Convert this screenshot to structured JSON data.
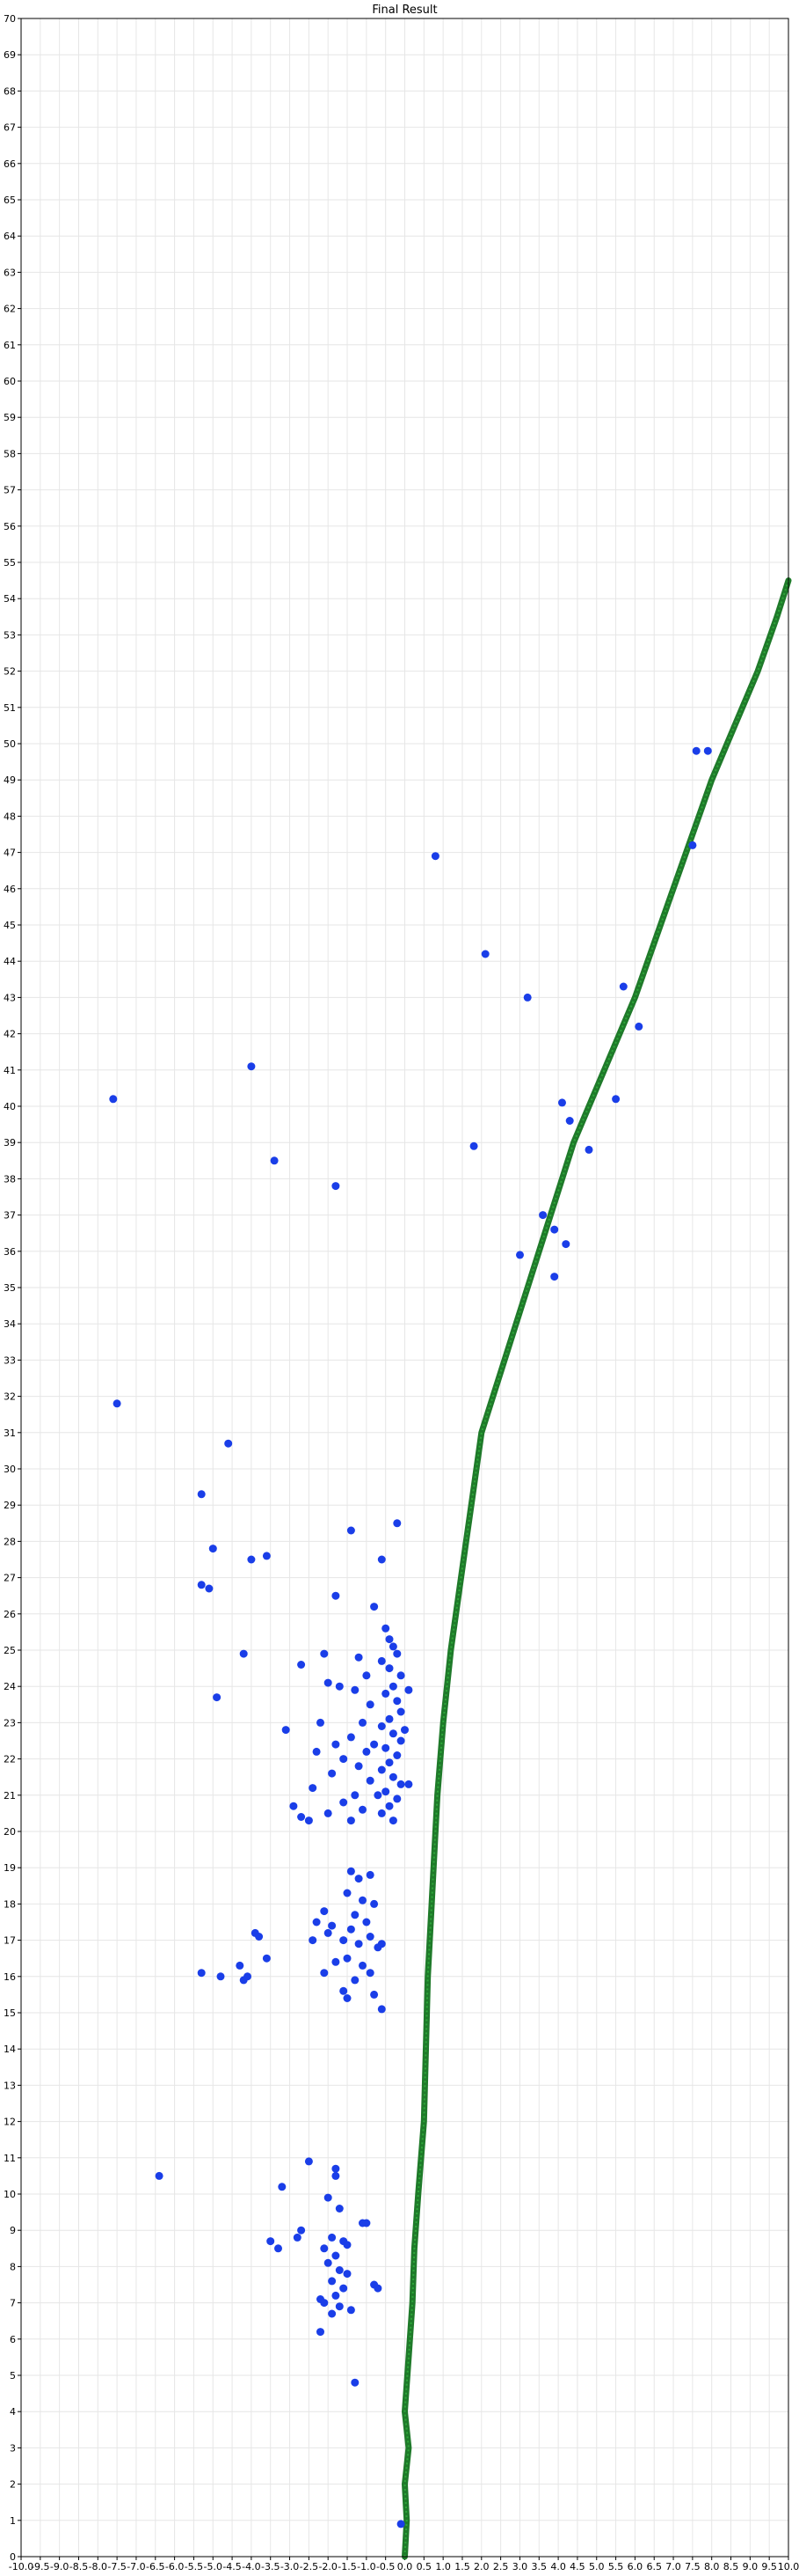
{
  "chart_data": {
    "type": "scatter",
    "title": "Final Result",
    "xlabel": "",
    "ylabel": "",
    "xlim": [
      -10.0,
      10.0
    ],
    "ylim": [
      0,
      70
    ],
    "grid": true,
    "x_ticks": [
      "-10.0",
      "-9.5",
      "-9.0",
      "-8.5",
      "-8.0",
      "-7.5",
      "-7.0",
      "-6.5",
      "-6.0",
      "-5.5",
      "-5.0",
      "-4.5",
      "-4.0",
      "-3.5",
      "-3.0",
      "-2.5",
      "-2.0",
      "-1.5",
      "-1.0",
      "-0.5",
      "0.0",
      "0.5",
      "1.0",
      "1.5",
      "2.0",
      "2.5",
      "3.0",
      "3.5",
      "4.0",
      "4.5",
      "5.0",
      "5.5",
      "6.0",
      "6.5",
      "7.0",
      "7.5",
      "8.0",
      "8.5",
      "9.0",
      "9.5",
      "10.0"
    ],
    "y_ticks": [
      "0",
      "1",
      "2",
      "3",
      "4",
      "5",
      "6",
      "7",
      "8",
      "9",
      "10",
      "11",
      "12",
      "13",
      "14",
      "15",
      "16",
      "17",
      "18",
      "19",
      "20",
      "21",
      "22",
      "23",
      "24",
      "25",
      "26",
      "27",
      "28",
      "29",
      "30",
      "31",
      "32",
      "33",
      "34",
      "35",
      "36",
      "37",
      "38",
      "39",
      "40",
      "41",
      "42",
      "43",
      "44",
      "45",
      "46",
      "47",
      "48",
      "49",
      "50",
      "51",
      "52",
      "53",
      "54",
      "55",
      "56",
      "57",
      "58",
      "59",
      "60",
      "61",
      "62",
      "63",
      "64",
      "65",
      "66",
      "67",
      "68",
      "69",
      "70"
    ],
    "series": [
      {
        "kind": "line",
        "color": "#1f7a2a",
        "x": [
          0.0,
          0.05,
          0.0,
          0.1,
          0.0,
          0.1,
          0.2,
          0.25,
          0.35,
          0.5,
          0.55,
          0.6,
          0.7,
          0.8,
          0.85,
          1.0,
          1.2,
          1.4,
          1.6,
          1.8,
          2.0,
          2.3,
          2.6,
          2.9,
          3.2,
          3.5,
          3.8,
          4.1,
          4.4,
          4.8,
          5.2,
          5.6,
          6.0,
          6.5,
          7.0,
          7.5,
          8.0,
          8.6,
          9.2,
          9.7,
          10.0
        ],
        "y": [
          0.0,
          1.0,
          2.0,
          3.0,
          4.0,
          5.5,
          7.0,
          8.5,
          10.0,
          12.0,
          14.0,
          16.0,
          18.0,
          20.0,
          21.0,
          23.0,
          25.0,
          26.5,
          28.0,
          29.5,
          31.0,
          32.0,
          33.0,
          34.0,
          35.0,
          36.0,
          37.0,
          38.0,
          39.0,
          40.0,
          41.0,
          42.0,
          43.0,
          44.5,
          46.0,
          47.5,
          49.0,
          50.5,
          52.0,
          53.5,
          54.5
        ]
      },
      {
        "kind": "scatter",
        "color": "#1a3ee8",
        "points": [
          [
            -7.6,
            40.2
          ],
          [
            -4.0,
            41.1
          ],
          [
            -3.4,
            38.5
          ],
          [
            -1.8,
            37.8
          ],
          [
            -7.5,
            31.8
          ],
          [
            -4.6,
            30.7
          ],
          [
            -5.3,
            29.3
          ],
          [
            -5.0,
            27.8
          ],
          [
            -4.0,
            27.5
          ],
          [
            -3.6,
            27.6
          ],
          [
            -1.4,
            28.3
          ],
          [
            -0.2,
            28.5
          ],
          [
            -0.6,
            27.5
          ],
          [
            -5.3,
            26.8
          ],
          [
            -5.1,
            26.7
          ],
          [
            -1.8,
            26.5
          ],
          [
            -0.8,
            26.2
          ],
          [
            -4.2,
            24.9
          ],
          [
            -2.7,
            24.6
          ],
          [
            -4.9,
            23.7
          ],
          [
            -3.1,
            22.8
          ],
          [
            -0.5,
            25.6
          ],
          [
            -0.4,
            25.3
          ],
          [
            -0.3,
            25.1
          ],
          [
            -0.2,
            24.9
          ],
          [
            -0.6,
            24.7
          ],
          [
            -0.4,
            24.5
          ],
          [
            -0.1,
            24.3
          ],
          [
            -0.3,
            24.0
          ],
          [
            -0.5,
            23.8
          ],
          [
            -0.2,
            23.6
          ],
          [
            -0.1,
            23.3
          ],
          [
            -0.4,
            23.1
          ],
          [
            -0.6,
            22.9
          ],
          [
            -0.3,
            22.7
          ],
          [
            -0.1,
            22.5
          ],
          [
            -0.5,
            22.3
          ],
          [
            -0.2,
            22.1
          ],
          [
            -0.4,
            21.9
          ],
          [
            -0.6,
            21.7
          ],
          [
            -0.3,
            21.5
          ],
          [
            -0.1,
            21.3
          ],
          [
            -0.5,
            21.1
          ],
          [
            -0.2,
            20.9
          ],
          [
            -0.4,
            20.7
          ],
          [
            -0.6,
            20.5
          ],
          [
            -0.3,
            20.3
          ],
          [
            0.1,
            23.9
          ],
          [
            0.0,
            22.8
          ],
          [
            0.1,
            21.3
          ],
          [
            -1.2,
            24.8
          ],
          [
            -1.0,
            24.3
          ],
          [
            -1.3,
            23.9
          ],
          [
            -0.9,
            23.5
          ],
          [
            -1.1,
            23.0
          ],
          [
            -1.4,
            22.6
          ],
          [
            -1.0,
            22.2
          ],
          [
            -1.2,
            21.8
          ],
          [
            -0.9,
            21.4
          ],
          [
            -1.3,
            21.0
          ],
          [
            -1.1,
            20.6
          ],
          [
            -1.4,
            20.3
          ],
          [
            -0.8,
            22.4
          ],
          [
            -0.7,
            21.0
          ],
          [
            -2.1,
            24.9
          ],
          [
            -2.0,
            24.1
          ],
          [
            -1.7,
            24.0
          ],
          [
            -2.2,
            23.0
          ],
          [
            -1.8,
            22.4
          ],
          [
            -2.3,
            22.2
          ],
          [
            -1.9,
            21.6
          ],
          [
            -2.4,
            21.2
          ],
          [
            -1.6,
            20.8
          ],
          [
            -2.0,
            20.5
          ],
          [
            -2.5,
            20.3
          ],
          [
            -2.9,
            20.7
          ],
          [
            -2.7,
            20.4
          ],
          [
            -1.6,
            22.0
          ],
          [
            -1.4,
            18.9
          ],
          [
            -1.2,
            18.7
          ],
          [
            -0.9,
            18.8
          ],
          [
            -1.5,
            18.3
          ],
          [
            -1.1,
            18.1
          ],
          [
            -0.8,
            18.0
          ],
          [
            -1.3,
            17.7
          ],
          [
            -1.0,
            17.5
          ],
          [
            -1.4,
            17.3
          ],
          [
            -0.9,
            17.1
          ],
          [
            -1.2,
            16.9
          ],
          [
            -0.7,
            16.8
          ],
          [
            -1.5,
            16.5
          ],
          [
            -1.1,
            16.3
          ],
          [
            -0.9,
            16.1
          ],
          [
            -1.3,
            15.9
          ],
          [
            -1.6,
            15.6
          ],
          [
            -1.5,
            15.4
          ],
          [
            -0.6,
            15.1
          ],
          [
            -0.8,
            15.5
          ],
          [
            -0.6,
            16.9
          ],
          [
            -2.1,
            17.8
          ],
          [
            -2.3,
            17.5
          ],
          [
            -1.9,
            17.4
          ],
          [
            -2.0,
            17.2
          ],
          [
            -2.4,
            17.0
          ],
          [
            -1.8,
            16.4
          ],
          [
            -2.1,
            16.1
          ],
          [
            -1.6,
            17.0
          ],
          [
            -3.9,
            17.2
          ],
          [
            -3.8,
            17.1
          ],
          [
            -4.3,
            16.3
          ],
          [
            -4.1,
            16.0
          ],
          [
            -4.2,
            15.9
          ],
          [
            -3.6,
            16.5
          ],
          [
            -4.8,
            16.0
          ],
          [
            -5.3,
            16.1
          ],
          [
            -6.4,
            10.5
          ],
          [
            -2.5,
            10.9
          ],
          [
            -1.8,
            10.7
          ],
          [
            -1.8,
            10.5
          ],
          [
            -3.2,
            10.2
          ],
          [
            -2.0,
            9.9
          ],
          [
            -1.7,
            9.6
          ],
          [
            -1.1,
            9.2
          ],
          [
            -1.0,
            9.2
          ],
          [
            -2.7,
            9.0
          ],
          [
            -2.8,
            8.8
          ],
          [
            -3.5,
            8.7
          ],
          [
            -3.3,
            8.5
          ],
          [
            -1.9,
            8.8
          ],
          [
            -1.6,
            8.7
          ],
          [
            -1.5,
            8.6
          ],
          [
            -2.1,
            8.5
          ],
          [
            -1.8,
            8.3
          ],
          [
            -2.0,
            8.1
          ],
          [
            -1.7,
            7.9
          ],
          [
            -1.5,
            7.8
          ],
          [
            -1.9,
            7.6
          ],
          [
            -1.6,
            7.4
          ],
          [
            -1.8,
            7.2
          ],
          [
            -2.2,
            7.1
          ],
          [
            -2.1,
            7.0
          ],
          [
            -1.7,
            6.9
          ],
          [
            -1.9,
            6.7
          ],
          [
            -1.4,
            6.8
          ],
          [
            -0.8,
            7.5
          ],
          [
            -0.7,
            7.4
          ],
          [
            -2.2,
            6.2
          ],
          [
            -1.3,
            4.8
          ],
          [
            -0.1,
            0.9
          ],
          [
            0.8,
            46.9
          ],
          [
            2.1,
            44.2
          ],
          [
            3.2,
            43.0
          ],
          [
            5.7,
            43.3
          ],
          [
            6.1,
            42.2
          ],
          [
            7.6,
            49.8
          ],
          [
            7.9,
            49.8
          ],
          [
            7.5,
            47.2
          ],
          [
            1.8,
            38.9
          ],
          [
            4.1,
            40.1
          ],
          [
            4.3,
            39.6
          ],
          [
            4.8,
            38.8
          ],
          [
            5.5,
            40.2
          ],
          [
            3.6,
            37.0
          ],
          [
            3.9,
            36.6
          ],
          [
            4.2,
            36.2
          ],
          [
            3.0,
            35.9
          ],
          [
            3.9,
            35.3
          ]
        ]
      }
    ]
  }
}
